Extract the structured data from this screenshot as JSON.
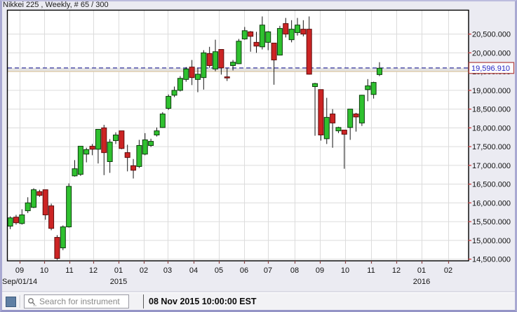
{
  "window": {
    "title": "Nikkei 225 , Weekly, # 65 / 300"
  },
  "toolbar": {
    "search_placeholder": "Search for instrument",
    "timestamp": "08 Nov 2015 10:00:00 EST"
  },
  "colors": {
    "up_fill": "#2fc12f",
    "up_stroke": "#0c3c0c",
    "down_fill": "#cc2424",
    "down_stroke": "#5e0b0b",
    "wick": "#141414",
    "grid": "#dcdcdc",
    "plot_border": "#000000",
    "dashed_price_line": "#17178f",
    "price_band": "#e4e4e4",
    "price_band_accent": "#ddb87a",
    "axis_tick_right": "#cc3333",
    "axis_tick_bottom": "#8a4444",
    "axis_text": "#111111",
    "price_box_border": "#b04040",
    "price_box_fill": "#fcfcfc",
    "price_box_text": "#2828c8",
    "plot_bg": "#ffffff",
    "outer_bg": "#ebebf2"
  },
  "chart_data": {
    "type": "candlestick",
    "symbol": "Nikkei 225",
    "timeframe": "Weekly",
    "bar_counter": "# 65 / 300",
    "grid": true,
    "price_marker": {
      "value": 19596.91,
      "label": "19,596.910"
    },
    "y_axis": {
      "min": 14500,
      "max": 20500,
      "tick_step": 500,
      "ticks": [
        {
          "value": 20500,
          "label": "20,500.000"
        },
        {
          "value": 20000,
          "label": "20,000.000"
        },
        {
          "value": 19500,
          "label": "19,500.000"
        },
        {
          "value": 19000,
          "label": "19,000.000"
        },
        {
          "value": 18500,
          "label": "18,500.000"
        },
        {
          "value": 18000,
          "label": "18,000.000"
        },
        {
          "value": 17500,
          "label": "17,500.000"
        },
        {
          "value": 17000,
          "label": "17,000.000"
        },
        {
          "value": 16500,
          "label": "16,500.000"
        },
        {
          "value": 16000,
          "label": "16,000.000"
        },
        {
          "value": 15500,
          "label": "15,500.000"
        },
        {
          "value": 15000,
          "label": "15,000.000"
        },
        {
          "value": 14500,
          "label": "14,500.000"
        }
      ]
    },
    "x_axis": {
      "month_labels": [
        "09",
        "10",
        "11",
        "12",
        "01",
        "02",
        "03",
        "04",
        "05",
        "06",
        "07",
        "08",
        "09",
        "10",
        "11",
        "12",
        "01",
        "02"
      ],
      "left_date": "Sep/01/14",
      "year_labels": [
        {
          "label": "2015",
          "month_index": 4
        },
        {
          "label": "2016",
          "month_index": 16
        }
      ]
    },
    "candles_format": [
      "open",
      "high",
      "low",
      "close"
    ],
    "candles": [
      [
        15380,
        15640,
        15300,
        15600
      ],
      [
        15620,
        15680,
        15420,
        15470
      ],
      [
        15450,
        15830,
        15420,
        15680
      ],
      [
        15790,
        16150,
        15730,
        16000
      ],
      [
        15880,
        16390,
        15860,
        16350
      ],
      [
        16300,
        16350,
        16160,
        16200
      ],
      [
        16350,
        16350,
        15550,
        15680
      ],
      [
        15920,
        15980,
        15270,
        15320
      ],
      [
        15080,
        15140,
        14480,
        14520
      ],
      [
        14800,
        15400,
        14740,
        15360
      ],
      [
        15360,
        16520,
        15340,
        16440
      ],
      [
        16720,
        17140,
        16700,
        16910
      ],
      [
        16760,
        17510,
        16720,
        17510
      ],
      [
        17300,
        17470,
        17080,
        17420
      ],
      [
        17510,
        17570,
        17270,
        17430
      ],
      [
        17430,
        17960,
        17050,
        17960
      ],
      [
        18000,
        18080,
        16740,
        17340
      ],
      [
        17100,
        17700,
        16800,
        17620
      ],
      [
        17660,
        17880,
        17570,
        17810
      ],
      [
        17920,
        17920,
        17430,
        17450
      ],
      [
        17340,
        17550,
        16840,
        17210
      ],
      [
        16990,
        17170,
        16650,
        16870
      ],
      [
        16970,
        17680,
        16930,
        17530
      ],
      [
        17300,
        17860,
        17270,
        17680
      ],
      [
        17530,
        17710,
        17490,
        17640
      ],
      [
        17810,
        18010,
        17770,
        17920
      ],
      [
        18010,
        18420,
        18000,
        18370
      ],
      [
        18520,
        18890,
        18480,
        18840
      ],
      [
        18870,
        19100,
        18820,
        19000
      ],
      [
        19000,
        19380,
        18970,
        19320
      ],
      [
        19290,
        19620,
        19230,
        19570
      ],
      [
        19620,
        19810,
        19140,
        19340
      ],
      [
        19290,
        19600,
        18950,
        19430
      ],
      [
        19340,
        20070,
        19020,
        20000
      ],
      [
        19980,
        20160,
        19600,
        19660
      ],
      [
        19570,
        20350,
        19510,
        20030
      ],
      [
        20090,
        20090,
        19420,
        19600
      ],
      [
        19360,
        19600,
        19250,
        19340
      ],
      [
        19660,
        19810,
        19530,
        19750
      ],
      [
        19710,
        20370,
        19700,
        20310
      ],
      [
        20370,
        20690,
        20350,
        20590
      ],
      [
        20560,
        20580,
        20030,
        20440
      ],
      [
        20280,
        20560,
        20000,
        20180
      ],
      [
        20160,
        20970,
        20090,
        20740
      ],
      [
        20280,
        20580,
        20070,
        20560
      ],
      [
        20260,
        20260,
        19150,
        19810
      ],
      [
        19940,
        20720,
        19930,
        20650
      ],
      [
        20780,
        20930,
        20410,
        20500
      ],
      [
        20350,
        20870,
        20280,
        20630
      ],
      [
        20540,
        20930,
        20460,
        20740
      ],
      [
        20630,
        20870,
        20440,
        20500
      ],
      [
        20630,
        20970,
        19420,
        19430
      ],
      [
        19100,
        19200,
        17790,
        19180
      ],
      [
        19020,
        19020,
        17660,
        17810
      ],
      [
        17710,
        18800,
        17570,
        18280
      ],
      [
        18370,
        18500,
        17470,
        18130
      ],
      [
        17920,
        18030,
        17860,
        18010
      ],
      [
        17940,
        17950,
        16910,
        17830
      ],
      [
        18010,
        18500,
        17680,
        18500
      ],
      [
        18370,
        18400,
        17900,
        18290
      ],
      [
        18130,
        18880,
        18050,
        18870
      ],
      [
        19020,
        19300,
        18710,
        19120
      ],
      [
        18890,
        19230,
        18780,
        19210
      ],
      [
        19420,
        19750,
        19380,
        19590
      ]
    ]
  }
}
